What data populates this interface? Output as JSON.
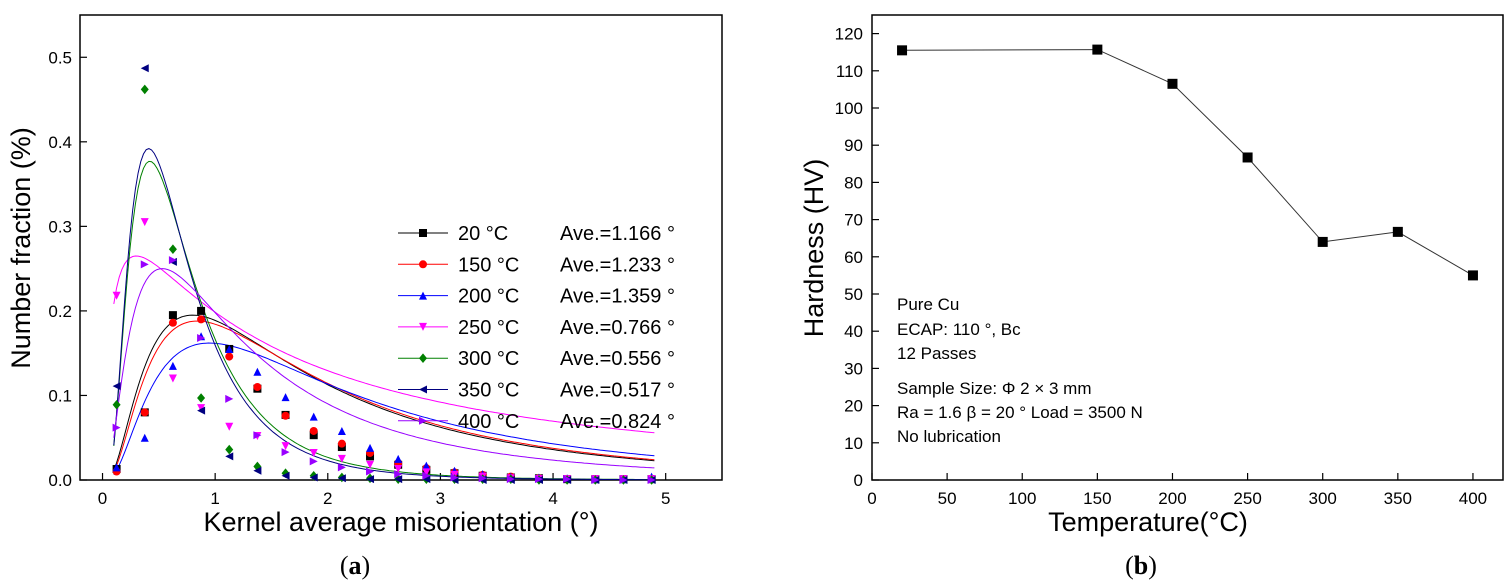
{
  "chart_data": [
    {
      "type": "scatter",
      "panel_label": "a",
      "xlabel": "Kernel average misorientation (°)",
      "ylabel": "Number fraction (%)",
      "xlim": [
        -0.2,
        5.5
      ],
      "ylim": [
        0,
        0.55
      ],
      "xticks": [
        0,
        1,
        2,
        3,
        4,
        5
      ],
      "yticks": [
        0.0,
        0.1,
        0.2,
        0.3,
        0.4,
        0.5
      ],
      "x": [
        0.125,
        0.375,
        0.625,
        0.875,
        1.125,
        1.375,
        1.625,
        1.875,
        2.125,
        2.375,
        2.625,
        2.875,
        3.125,
        3.375,
        3.625,
        3.875,
        4.125,
        4.375,
        4.625,
        4.875
      ],
      "series": [
        {
          "name": "20 °C",
          "ave": "Ave.=1.166 °",
          "color": "#000000",
          "marker": "square",
          "values": [
            0.013,
            0.08,
            0.195,
            0.2,
            0.155,
            0.108,
            0.077,
            0.053,
            0.039,
            0.028,
            0.018,
            0.012,
            0.008,
            0.005,
            0.003,
            0.002,
            0.001,
            0.001,
            0.001,
            0.001
          ],
          "fit_peak": 0.195,
          "fit_center": 0.8,
          "fit_width": 0.5
        },
        {
          "name": "150 °C",
          "ave": "Ave.=1.233 °",
          "color": "#ff0000",
          "marker": "circle",
          "values": [
            0.01,
            0.08,
            0.186,
            0.19,
            0.146,
            0.11,
            0.076,
            0.058,
            0.043,
            0.032,
            0.02,
            0.014,
            0.009,
            0.006,
            0.004,
            0.002,
            0.001,
            0.001,
            0.001,
            0.001
          ],
          "fit_peak": 0.188,
          "fit_center": 0.84,
          "fit_width": 0.52
        },
        {
          "name": "200 °C",
          "ave": "Ave.=1.359 °",
          "color": "#0000ff",
          "marker": "triangle-up",
          "values": [
            0.015,
            0.05,
            0.135,
            0.17,
            0.155,
            0.128,
            0.098,
            0.075,
            0.058,
            0.038,
            0.025,
            0.017,
            0.011,
            0.007,
            0.004,
            0.003,
            0.002,
            0.001,
            0.001,
            0.004
          ],
          "fit_peak": 0.162,
          "fit_center": 0.95,
          "fit_width": 0.6
        },
        {
          "name": "250 °C",
          "ave": "Ave.=0.766 °",
          "color": "#ff00ff",
          "marker": "triangle-down",
          "values": [
            0.218,
            0.305,
            0.12,
            0.085,
            0.063,
            0.052,
            0.04,
            0.032,
            0.025,
            0.018,
            0.013,
            0.009,
            0.006,
            0.004,
            0.002,
            0.001,
            0.001,
            0.001,
            0.001,
            0.001
          ],
          "fit_peak": 0.265,
          "fit_center": 0.3,
          "fit_width": 0.4
        },
        {
          "name": "300 °C",
          "ave": "Ave.=0.556 °",
          "color": "#008000",
          "marker": "diamond",
          "values": [
            0.089,
            0.462,
            0.273,
            0.097,
            0.036,
            0.016,
            0.008,
            0.005,
            0.003,
            0.002,
            0.001,
            0.001,
            0.001,
            0.001,
            0.001,
            0.0,
            0.0,
            0.0,
            0.0,
            0.0
          ],
          "fit_peak": 0.377,
          "fit_center": 0.42,
          "fit_width": 0.18
        },
        {
          "name": "350 °C",
          "ave": "Ave.=0.517 °",
          "color": "#000080",
          "marker": "triangle-left",
          "values": [
            0.111,
            0.487,
            0.258,
            0.082,
            0.028,
            0.011,
            0.005,
            0.003,
            0.002,
            0.001,
            0.001,
            0.001,
            0.0,
            0.0,
            0.0,
            0.0,
            0.0,
            0.0,
            0.0,
            0.0
          ],
          "fit_peak": 0.392,
          "fit_center": 0.41,
          "fit_width": 0.17
        },
        {
          "name": "400 °C",
          "ave": "Ave.=0.824 °",
          "color": "#9900ff",
          "marker": "triangle-right",
          "values": [
            0.062,
            0.255,
            0.26,
            0.168,
            0.096,
            0.053,
            0.033,
            0.022,
            0.015,
            0.01,
            0.007,
            0.005,
            0.003,
            0.002,
            0.001,
            0.001,
            0.001,
            0.0,
            0.0,
            0.0
          ],
          "fit_peak": 0.25,
          "fit_center": 0.53,
          "fit_width": 0.36
        }
      ],
      "legend_position": "right"
    },
    {
      "type": "line",
      "panel_label": "b",
      "xlabel": "Temperature(°C)",
      "ylabel": "Hardness (HV)",
      "xlim": [
        0,
        420
      ],
      "ylim": [
        0,
        125
      ],
      "xticks": [
        0,
        50,
        100,
        150,
        200,
        250,
        300,
        350,
        400
      ],
      "yticks": [
        0,
        10,
        20,
        30,
        40,
        50,
        60,
        70,
        80,
        90,
        100,
        110,
        120
      ],
      "x": [
        20,
        150,
        200,
        250,
        300,
        350,
        400
      ],
      "values": [
        115.5,
        115.7,
        106.5,
        86.7,
        64.0,
        66.7,
        55.0
      ],
      "color": "#000000",
      "marker": "square",
      "annotations": [
        "Pure Cu",
        "ECAP: 110 °, Bc",
        "12 Passes",
        "Sample Size: Φ 2 × 3 mm",
        "Ra = 1.6    β = 20 °   Load = 3500 N",
        "No lubrication"
      ]
    }
  ],
  "captions": {
    "a": {
      "open": "(",
      "letter": "a",
      "close": ")"
    },
    "b": {
      "open": "(",
      "letter": "b",
      "close": ")"
    }
  }
}
